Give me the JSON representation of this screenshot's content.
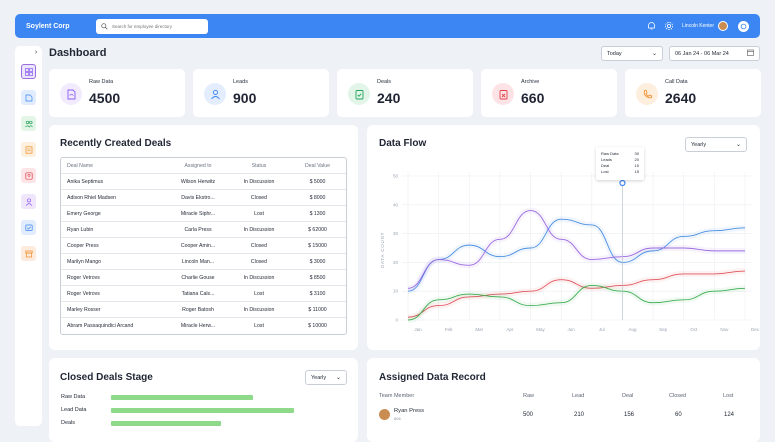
{
  "app": {
    "name": "Soylent Corp",
    "search_placeholder": "Search for employee directory",
    "user_name": "Lincoln Kenter"
  },
  "page": {
    "title": "Dashboard",
    "period_select": "Today",
    "date_range": "06 Jan 24 - 06 Mar 24"
  },
  "stats": [
    {
      "label": "Raw Data",
      "value": "4500",
      "color": "#8b5cf6",
      "icon": "document-icon"
    },
    {
      "label": "Leads",
      "value": "900",
      "color": "#3b86f2",
      "icon": "user-icon"
    },
    {
      "label": "Deals",
      "value": "240",
      "color": "#22a35a",
      "icon": "clipboard-check-icon"
    },
    {
      "label": "Archive",
      "value": "660",
      "color": "#e0424a",
      "icon": "archive-icon"
    },
    {
      "label": "Call Data",
      "value": "2640",
      "color": "#f08a24",
      "icon": "phone-icon"
    }
  ],
  "recent_deals": {
    "title": "Recently Created Deals",
    "headers": [
      "Deal Name",
      "Assigned to",
      "Status",
      "Deal Value"
    ],
    "rows": [
      [
        "Anika Septimus",
        "Wilson Herwitz",
        "In Discussion",
        "$ 5000"
      ],
      [
        "Adison Rhiel Madsen",
        "Davis Ekstro...",
        "Closed",
        "$ 8000"
      ],
      [
        "Emery George",
        "Miracle Siphr...",
        "Lost",
        "$ 1300"
      ],
      [
        "Ryan Lubin",
        "Carla Press",
        "In Discussion",
        "$ 62000"
      ],
      [
        "Cooper Press",
        "Cooper Amin...",
        "Closed",
        "$ 15000"
      ],
      [
        "Marilyn Mango",
        "Lincoln Man...",
        "Closed",
        "$ 3000"
      ],
      [
        "Roger Vetrovs",
        "Charlie Gouse",
        "In Discussion",
        "$ 8500"
      ],
      [
        "Roger Vetrovs",
        "Tatiana Cals...",
        "Lost",
        "$ 3100"
      ],
      [
        "Marley Rosser",
        "Roger Batosh",
        "In Discussion",
        "$ 11000"
      ],
      [
        "Abram Passaquindici Arcand",
        "Miracle Herw...",
        "Lost",
        "$ 10000"
      ]
    ]
  },
  "data_flow": {
    "title": "Data Flow",
    "period": "Yearly",
    "tooltip": [
      {
        "label": "Raw Data",
        "value": "30"
      },
      {
        "label": "Leads",
        "value": "20"
      },
      {
        "label": "Deal",
        "value": "15"
      },
      {
        "label": "Lost",
        "value": "15"
      }
    ]
  },
  "chart_data": {
    "type": "line",
    "ylabel": "DATA COUNT",
    "ylim": [
      0,
      50
    ],
    "yticks": [
      "0",
      "10",
      "20",
      "30",
      "40",
      "50"
    ],
    "categories": [
      "Jan",
      "Feb",
      "Mar",
      "Apr",
      "May",
      "Jun",
      "Jul",
      "Aug",
      "Sep",
      "Oct",
      "Nov",
      "Dec"
    ],
    "series": [
      {
        "color": "#4a90e2",
        "values": [
          10,
          21,
          26,
          22,
          25,
          35,
          33,
          20,
          24,
          29,
          31,
          32
        ]
      },
      {
        "color": "#9b6be0",
        "values": [
          11,
          21,
          19,
          28,
          38,
          28,
          21,
          22,
          25,
          25,
          24,
          24
        ]
      },
      {
        "color": "#e0555f",
        "values": [
          1,
          5,
          8,
          9,
          10,
          14,
          11,
          12,
          14,
          16,
          16,
          17
        ]
      },
      {
        "color": "#3fae53",
        "values": [
          0,
          7,
          9,
          8,
          5,
          6,
          12,
          10,
          6,
          7,
          10,
          11
        ]
      }
    ]
  },
  "closed_stage": {
    "title": "Closed Deals Stage",
    "period": "Yearly",
    "bars": [
      {
        "label": "Raw Data",
        "value": 0.66
      },
      {
        "label": "Lead Data",
        "value": 0.85
      },
      {
        "label": "Deals",
        "value": 0.51
      }
    ]
  },
  "assigned": {
    "title": "Assigned Data Record",
    "headers": [
      "Team Member",
      "Raw",
      "Lead",
      "Deal",
      "Closed",
      "Lost"
    ],
    "rows": [
      {
        "name": "Ryan Press",
        "sub": "806",
        "values": [
          "500",
          "210",
          "156",
          "60",
          "124"
        ]
      }
    ]
  }
}
